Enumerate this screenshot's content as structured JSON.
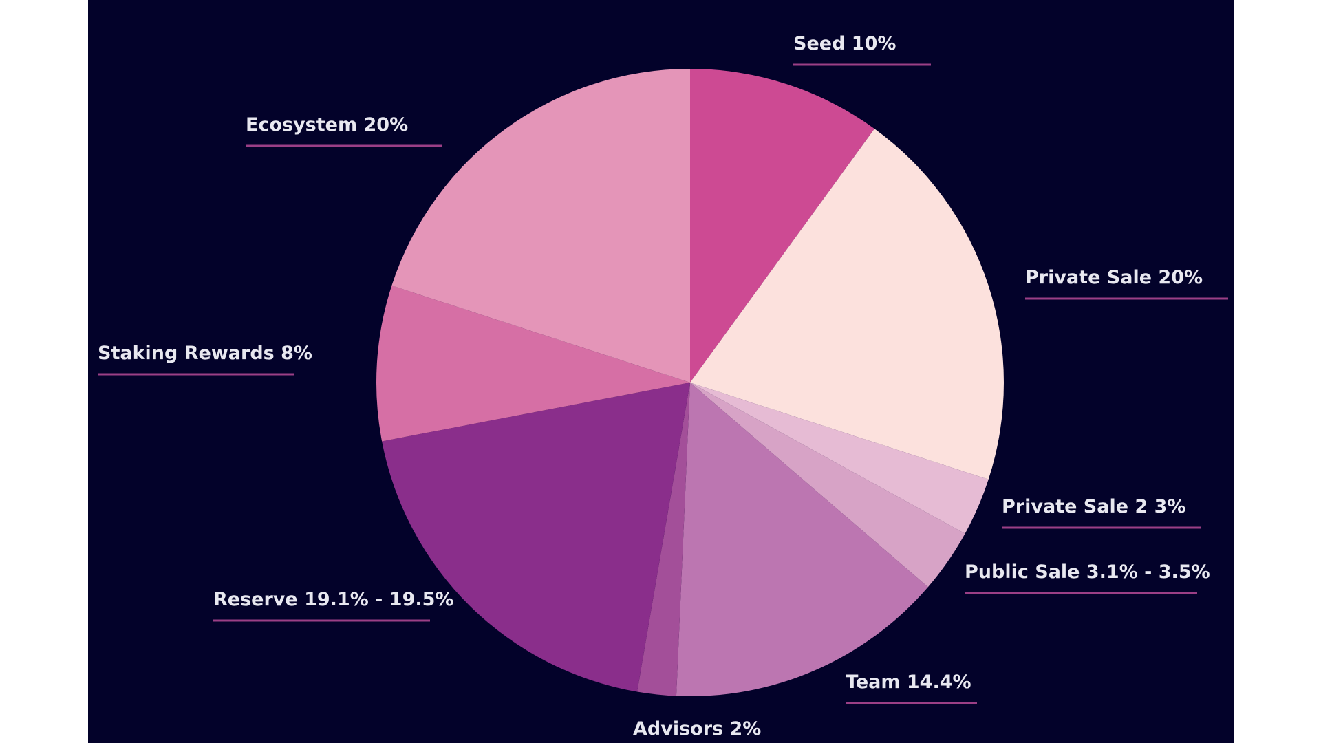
{
  "chart_data": {
    "type": "pie",
    "title": "",
    "start_angle_deg": 0,
    "direction": "clockwise",
    "background_color": "#03022a",
    "text_color": "#e8e8f0",
    "leader_line_color": "#9b3f86",
    "slices": [
      {
        "label": "Seed 10%",
        "value": 10,
        "color": "#cd4a93"
      },
      {
        "label": "Private Sale 20%",
        "value": 20,
        "color": "#fce1dd"
      },
      {
        "label": "Private Sale 2 3%",
        "value": 3,
        "color": "#e6bbd4"
      },
      {
        "label": "Public Sale 3.1% - 3.5%",
        "value": 3.3,
        "color": "#d7a3c6"
      },
      {
        "label": "Team 14.4%",
        "value": 14.4,
        "color": "#bc76b1"
      },
      {
        "label": "Advisors 2%",
        "value": 2,
        "color": "#a34f99"
      },
      {
        "label": "Reserve 19.1% - 19.5%",
        "value": 19.3,
        "color": "#8a2e8b"
      },
      {
        "label": "Staking Rewards 8%",
        "value": 8,
        "color": "#d66fa5"
      },
      {
        "label": "Ecosystem 20%",
        "value": 20,
        "color": "#e495b8"
      }
    ]
  }
}
